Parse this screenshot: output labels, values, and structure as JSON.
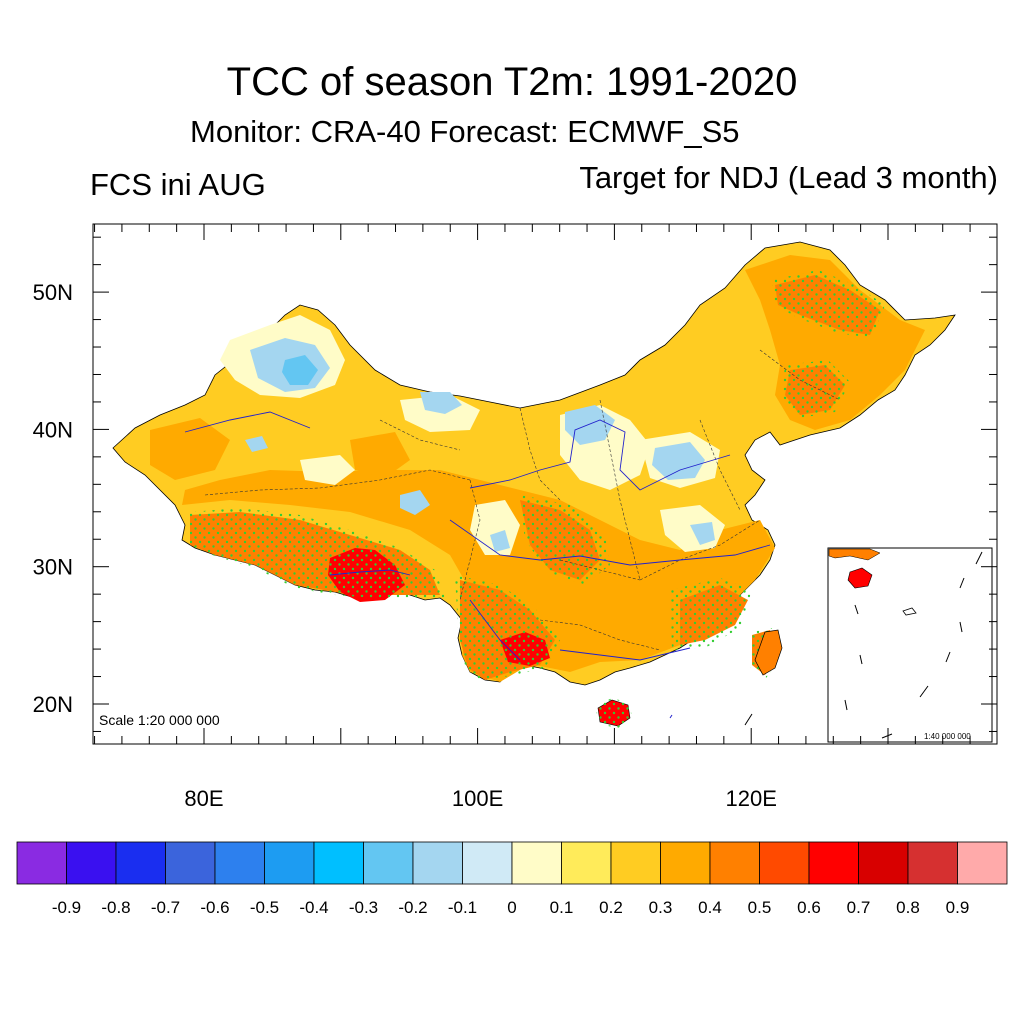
{
  "title": "TCC of season T2m: 1991-2020",
  "subtitle": "Monitor: CRA-40   Forecast: ECMWF_S5",
  "left_label": "FCS ini AUG",
  "right_label": "Target for NDJ (Lead 3 month)",
  "map": {
    "scale_text": "Scale 1:20 000 000",
    "inset_scale_text": "1:40 000 000",
    "lat_ticks": [
      "20N",
      "30N",
      "40N",
      "50N"
    ],
    "lon_ticks": [
      "80E",
      "100E",
      "120E"
    ]
  },
  "colorbar": {
    "colors": [
      "#8a2be2",
      "#3a10f0",
      "#1a2ef0",
      "#3b64dc",
      "#2d80ee",
      "#1d9cf2",
      "#00bfff",
      "#63c6f2",
      "#a4d6f0",
      "#d0eaf6",
      "#fffcc8",
      "#ffeb5a",
      "#ffcc22",
      "#ffaa00",
      "#ff8000",
      "#ff4a00",
      "#ff0000",
      "#d80000",
      "#d63030",
      "#ffaaaa"
    ],
    "labels": [
      "-0.9",
      "-0.8",
      "-0.7",
      "-0.6",
      "-0.5",
      "-0.4",
      "-0.3",
      "-0.2",
      "-0.1",
      "0",
      "0.1",
      "0.2",
      "0.3",
      "0.4",
      "0.5",
      "0.6",
      "0.7",
      "0.8",
      "0.9"
    ]
  }
}
